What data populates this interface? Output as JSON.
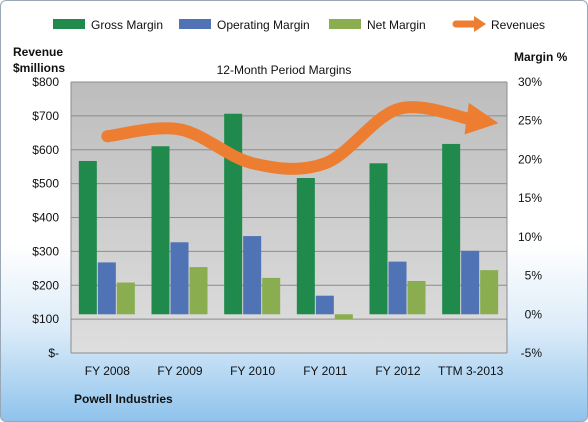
{
  "chart_data": {
    "type": "bar",
    "title": "12-Month Period Margins",
    "company": "Powell Industries",
    "left_axis_label_line1": "Revenue",
    "left_axis_label_line2": "$millions",
    "right_axis_label": "Margin %",
    "categories": [
      "FY 2008",
      "FY 2009",
      "FY 2010",
      "FY 2011",
      "FY 2012",
      "TTM 3-2013"
    ],
    "left_ticks": [
      "$800",
      "$700",
      "$600",
      "$500",
      "$400",
      "$300",
      "$200",
      "$100",
      "$-"
    ],
    "right_ticks": [
      "30%",
      "25%",
      "20%",
      "15%",
      "10%",
      "5%",
      "0%",
      "-5%"
    ],
    "ylim_left": [
      0,
      800
    ],
    "ylim_right": [
      -5,
      30
    ],
    "grid": true,
    "legend_position": "top",
    "series": [
      {
        "name": "Gross Margin",
        "color": "#1f8a4c",
        "values": [
          19.8,
          21.7,
          25.9,
          17.6,
          19.5,
          22.0
        ]
      },
      {
        "name": "Operating Margin",
        "color": "#4f73b5",
        "values": [
          6.7,
          9.3,
          10.1,
          2.4,
          6.8,
          8.2
        ]
      },
      {
        "name": "Net Margin",
        "color": "#8aae4f",
        "values": [
          4.1,
          6.1,
          4.7,
          -0.6,
          4.3,
          5.7
        ]
      }
    ],
    "revenue_series": {
      "name": "Revenues",
      "color": "#ed7d31",
      "values": [
        640,
        660,
        560,
        560,
        720,
        690
      ]
    }
  }
}
